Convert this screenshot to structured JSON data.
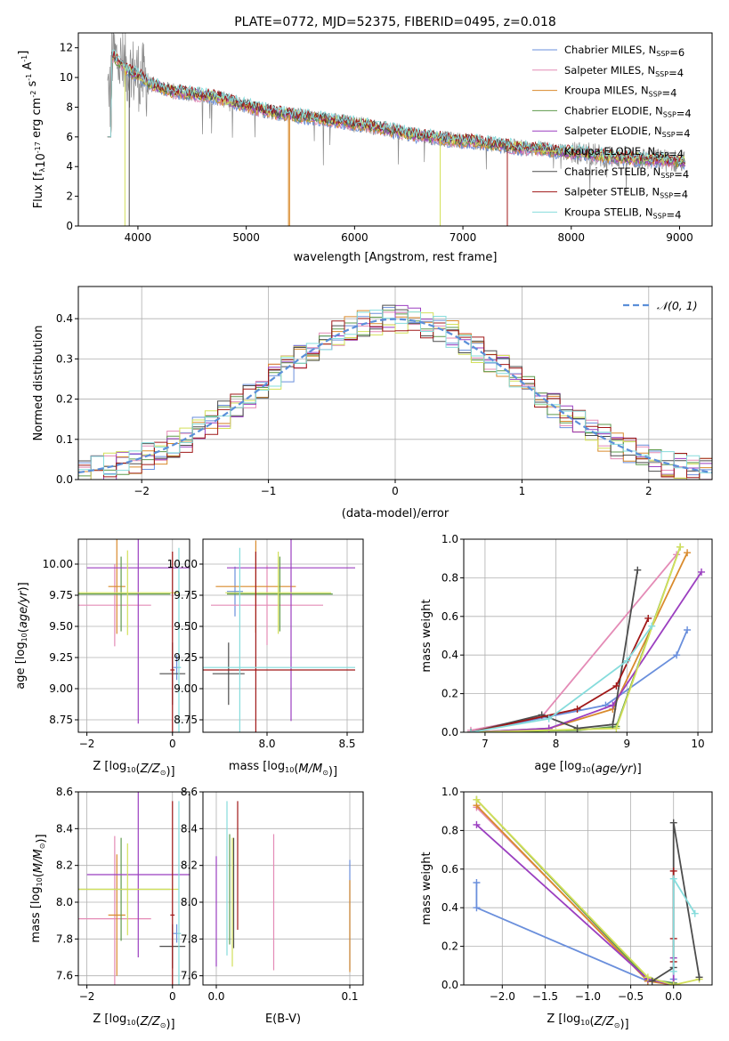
{
  "figure": {
    "title": "PLATE=0772, MJD=52375, FIBERID=0495, z=0.018"
  },
  "colors": {
    "series": [
      "#6a8fdc",
      "#e48bb6",
      "#d98a2c",
      "#5e9a4c",
      "#9b3fc0",
      "#d3e05a",
      "#4d4d4d",
      "#a01818",
      "#86dcdc"
    ],
    "data_spectrum": "#8a8a8a",
    "gaussian": "#5b8fd9",
    "grid": "#b0b0b0"
  },
  "chart_data": [
    {
      "id": "spectrum",
      "type": "line",
      "xlabel": "wavelength [Angstrom, rest frame]",
      "ylabel_base": "Flux [f",
      "ylabel_sub": "λ",
      "ylabel_mid": "10",
      "ylabel_exp1": "-17",
      "ylabel_mid2": " erg cm",
      "ylabel_exp2": "-2",
      "ylabel_mid3": " s",
      "ylabel_exp3": "-1",
      "ylabel_mid4": " A",
      "ylabel_exp4": "-1",
      "ylabel_end": "]",
      "xlim": [
        3450,
        9300
      ],
      "ylim": [
        0,
        13
      ],
      "xticks": [
        4000,
        5000,
        6000,
        7000,
        8000,
        9000
      ],
      "yticks": [
        0,
        2,
        4,
        6,
        8,
        10,
        12
      ],
      "continuum_x": [
        3720,
        3760,
        3900,
        4000,
        4100,
        4300,
        4500,
        4700,
        4900,
        5100,
        5300,
        5500,
        5700,
        5900,
        6100,
        6300,
        6500,
        6700,
        6900,
        7100,
        7300,
        7500,
        7700,
        7900,
        8100,
        8300,
        8500,
        8700,
        8900,
        9050
      ],
      "continuum_y": [
        6.0,
        11.5,
        10.5,
        10.2,
        9.6,
        9.1,
        8.9,
        8.7,
        8.3,
        7.9,
        7.6,
        7.4,
        7.2,
        7.0,
        6.8,
        6.5,
        6.2,
        6.0,
        5.8,
        5.7,
        5.5,
        5.3,
        5.2,
        5.0,
        4.9,
        4.7,
        4.6,
        4.5,
        4.4,
        4.3
      ],
      "legend": [
        {
          "name": "Chabrier MILES, N",
          "n": "=6"
        },
        {
          "name": "Salpeter MILES, N",
          "n": "=4"
        },
        {
          "name": "Kroupa MILES, N",
          "n": "=4"
        },
        {
          "name": "Chabrier ELODIE, N",
          "n": "=4"
        },
        {
          "name": "Salpeter ELODIE, N",
          "n": "=4"
        },
        {
          "name": "Kroupa ELODIE, N",
          "n": "=4"
        },
        {
          "name": "Chabrier STELIB, N",
          "n": "=4"
        },
        {
          "name": "Salpeter STELIB, N",
          "n": "=4"
        },
        {
          "name": "Kroupa STELIB, N",
          "n": "=4"
        }
      ],
      "legend_sub": "SSP",
      "legend_position": "top-right"
    },
    {
      "id": "residuals",
      "type": "histogram",
      "xlabel": "(data-model)/error",
      "ylabel": "Normed distribution",
      "xlim": [
        -2.5,
        2.5
      ],
      "ylim": [
        0,
        0.48
      ],
      "xticks": [
        -2,
        -1,
        0,
        1,
        2
      ],
      "yticks": [
        0.0,
        0.1,
        0.2,
        0.3,
        0.4
      ],
      "bin_width": 0.1,
      "legend": "𝒩(0, 1)",
      "legend_position": "top-right"
    },
    {
      "id": "age_vs_Z",
      "type": "errorbar",
      "xlabel": "Z [log10(Z/Z⊙)]",
      "ylabel": "age  [log10(age/yr)]",
      "xlim": [
        -2.2,
        0.4
      ],
      "ylim": [
        8.65,
        10.2
      ],
      "xticks": [
        -2,
        0
      ],
      "yticks": [
        8.75,
        9.0,
        9.25,
        9.5,
        9.75,
        10.0
      ],
      "points": [
        {
          "x": 0.1,
          "xerr": 0.08,
          "y": 9.17,
          "yerr": 0.1
        },
        {
          "x": -1.35,
          "xerr": 0.85,
          "y": 9.67,
          "yerr": 0.33
        },
        {
          "x": -1.3,
          "xerr": 0.2,
          "y": 9.82,
          "yerr": 0.38
        },
        {
          "x": -1.2,
          "xerr": 1.15,
          "y": 9.76,
          "yerr": 0.3
        },
        {
          "x": -0.8,
          "xerr": 1.2,
          "y": 9.97,
          "yerr": 1.25
        },
        {
          "x": -1.05,
          "xerr": 1.2,
          "y": 9.77,
          "yerr": 0.34
        },
        {
          "x": 0.0,
          "xerr": 0.3,
          "y": 9.12,
          "yerr": 0.25
        },
        {
          "x": 0.0,
          "xerr": 0.05,
          "y": 9.15,
          "yerr": 0.95
        },
        {
          "x": 0.15,
          "xerr": 0.05,
          "y": 9.17,
          "yerr": 0.96
        }
      ]
    },
    {
      "id": "age_vs_mass",
      "type": "errorbar",
      "xlabel": "mass [log10(M/M⊙)]",
      "ylabel": "",
      "xlim": [
        7.6,
        8.6
      ],
      "ylim": [
        8.65,
        10.2
      ],
      "xticks": [
        8.0,
        8.5
      ],
      "yticks": [
        8.75,
        9.0,
        9.25,
        9.5,
        9.75,
        10.0
      ],
      "points": [
        {
          "x": 7.8,
          "xerr": 0.05,
          "y": 9.78,
          "yerr": 0.2
        },
        {
          "x": 8.0,
          "xerr": 0.35,
          "y": 9.67,
          "yerr": 0.32
        },
        {
          "x": 7.93,
          "xerr": 0.25,
          "y": 9.82,
          "yerr": 0.37
        },
        {
          "x": 8.08,
          "xerr": 0.33,
          "y": 9.76,
          "yerr": 0.3
        },
        {
          "x": 8.15,
          "xerr": 0.4,
          "y": 9.97,
          "yerr": 1.23
        },
        {
          "x": 8.07,
          "xerr": 0.33,
          "y": 9.77,
          "yerr": 0.33
        },
        {
          "x": 7.76,
          "xerr": 0.1,
          "y": 9.12,
          "yerr": 0.25
        },
        {
          "x": 7.93,
          "xerr": 0.62,
          "y": 9.15,
          "yerr": 0.95
        },
        {
          "x": 7.83,
          "xerr": 0.72,
          "y": 9.17,
          "yerr": 0.96
        }
      ]
    },
    {
      "id": "mass_weight_vs_age",
      "type": "line",
      "xlabel": "age  [log10(age/yr)]",
      "ylabel": "mass weight",
      "xlim": [
        6.7,
        10.2
      ],
      "ylim": [
        0,
        1
      ],
      "xticks": [
        7,
        8,
        9,
        10
      ],
      "yticks": [
        0.0,
        0.2,
        0.4,
        0.6,
        0.8,
        1.0
      ],
      "series": [
        {
          "x": [
            6.8,
            8.7,
            9.7,
            9.85
          ],
          "y": [
            0.0,
            0.14,
            0.4,
            0.53
          ]
        },
        {
          "x": [
            6.8,
            7.8,
            9.7
          ],
          "y": [
            0.01,
            0.08,
            0.92
          ]
        },
        {
          "x": [
            6.8,
            7.9,
            8.8,
            9.85
          ],
          "y": [
            0.0,
            0.02,
            0.12,
            0.93
          ]
        },
        {
          "x": [
            6.8,
            8.3,
            8.85,
            9.75
          ],
          "y": [
            0.0,
            0.01,
            0.03,
            0.96
          ]
        },
        {
          "x": [
            6.8,
            7.9,
            8.8,
            10.05
          ],
          "y": [
            0.0,
            0.02,
            0.14,
            0.83
          ]
        },
        {
          "x": [
            6.8,
            8.85,
            9.75
          ],
          "y": [
            0.0,
            0.02,
            0.96
          ]
        },
        {
          "x": [
            6.8,
            7.8,
            8.3,
            8.8,
            9.15
          ],
          "y": [
            0.0,
            0.09,
            0.02,
            0.04,
            0.84
          ]
        },
        {
          "x": [
            6.8,
            8.3,
            8.85,
            9.3
          ],
          "y": [
            0.0,
            0.12,
            0.24,
            0.59
          ]
        },
        {
          "x": [
            6.8,
            7.9,
            9.0,
            9.35
          ],
          "y": [
            0.0,
            0.07,
            0.37,
            0.55
          ]
        }
      ]
    },
    {
      "id": "mass_vs_Z",
      "type": "errorbar",
      "xlabel": "Z [log10(Z/Z⊙)]",
      "ylabel": "mass [log10(M/M⊙)]",
      "xlim": [
        -2.2,
        0.4
      ],
      "ylim": [
        7.55,
        8.6
      ],
      "xticks": [
        -2,
        0
      ],
      "yticks": [
        7.6,
        7.8,
        8.0,
        8.2,
        8.4,
        8.6
      ],
      "points": [
        {
          "x": 0.1,
          "xerr": 0.08,
          "y": 7.83,
          "yerr": 0.05
        },
        {
          "x": -1.35,
          "xerr": 0.85,
          "y": 7.91,
          "yerr": 0.45
        },
        {
          "x": -1.3,
          "xerr": 0.2,
          "y": 7.93,
          "yerr": 0.33
        },
        {
          "x": -1.2,
          "xerr": 1.15,
          "y": 8.07,
          "yerr": 0.28
        },
        {
          "x": -0.8,
          "xerr": 1.2,
          "y": 8.15,
          "yerr": 0.45
        },
        {
          "x": -1.05,
          "xerr": 1.2,
          "y": 8.07,
          "yerr": 0.25
        },
        {
          "x": 0.0,
          "xerr": 0.3,
          "y": 7.76,
          "yerr": 0.12
        },
        {
          "x": 0.0,
          "xerr": 0.05,
          "y": 7.93,
          "yerr": 0.62
        },
        {
          "x": 0.15,
          "xerr": 0.05,
          "y": 7.83,
          "yerr": 0.72
        }
      ]
    },
    {
      "id": "mass_vs_EBV",
      "type": "errorbar",
      "xlabel": "E(B-V)",
      "ylabel": "",
      "xlim": [
        -0.01,
        0.11
      ],
      "ylim": [
        7.55,
        8.6
      ],
      "xticks": [
        0.0,
        0.1
      ],
      "yticks": [
        7.6,
        7.8,
        8.0,
        8.2,
        8.4,
        8.6
      ],
      "points": [
        {
          "x": 0.1,
          "y": 7.93,
          "yerr": 0.3
        },
        {
          "x": 0.043,
          "y": 8.0,
          "yerr": 0.37
        },
        {
          "x": 0.1,
          "y": 7.87,
          "yerr": 0.25
        },
        {
          "x": 0.01,
          "y": 8.07,
          "yerr": 0.3
        },
        {
          "x": 0.0,
          "y": 7.95,
          "yerr": 0.3
        },
        {
          "x": 0.012,
          "y": 8.0,
          "yerr": 0.35
        },
        {
          "x": 0.013,
          "y": 8.05,
          "yerr": 0.3
        },
        {
          "x": 0.016,
          "y": 8.2,
          "yerr": 0.35
        },
        {
          "x": 0.008,
          "y": 8.13,
          "yerr": 0.42
        }
      ]
    },
    {
      "id": "mass_weight_vs_Z",
      "type": "line",
      "xlabel": "Z [log10(Z/Z⊙)]",
      "ylabel": "mass weight",
      "xlim": [
        -2.45,
        0.45
      ],
      "ylim": [
        0,
        1
      ],
      "xticks": [
        -2.0,
        -1.5,
        -1.0,
        -0.5,
        0.0
      ],
      "yticks": [
        0.0,
        0.2,
        0.4,
        0.6,
        0.8,
        1.0
      ],
      "series": [
        {
          "x": [
            -2.3,
            -2.3,
            -0.3,
            0.0,
            0.0
          ],
          "y": [
            0.53,
            0.4,
            0.02,
            0.01,
            0.03
          ]
        },
        {
          "x": [
            -2.3,
            -0.3,
            0.0,
            0.0
          ],
          "y": [
            0.92,
            0.03,
            0.0,
            0.01
          ]
        },
        {
          "x": [
            -2.3,
            -0.3,
            0.0
          ],
          "y": [
            0.93,
            0.02,
            0.0
          ]
        },
        {
          "x": [
            -2.3,
            -0.3,
            0.0,
            0.0
          ],
          "y": [
            0.96,
            0.03,
            0.01,
            0.0
          ]
        },
        {
          "x": [
            -2.3,
            -0.3,
            0.0,
            0.0
          ],
          "y": [
            0.83,
            0.03,
            0.0,
            0.14
          ]
        },
        {
          "x": [
            -2.3,
            -0.3,
            0.0,
            0.3
          ],
          "y": [
            0.96,
            0.04,
            0.0,
            0.03
          ]
        },
        {
          "x": [
            -0.25,
            0.0,
            0.0,
            0.3
          ],
          "y": [
            0.02,
            0.09,
            0.84,
            0.04
          ]
        },
        {
          "x": [
            0.0,
            0.0,
            0.0
          ],
          "y": [
            0.24,
            0.59,
            0.12
          ]
        },
        {
          "x": [
            0.0,
            0.0,
            0.25
          ],
          "y": [
            0.07,
            0.55,
            0.37
          ]
        }
      ]
    }
  ]
}
